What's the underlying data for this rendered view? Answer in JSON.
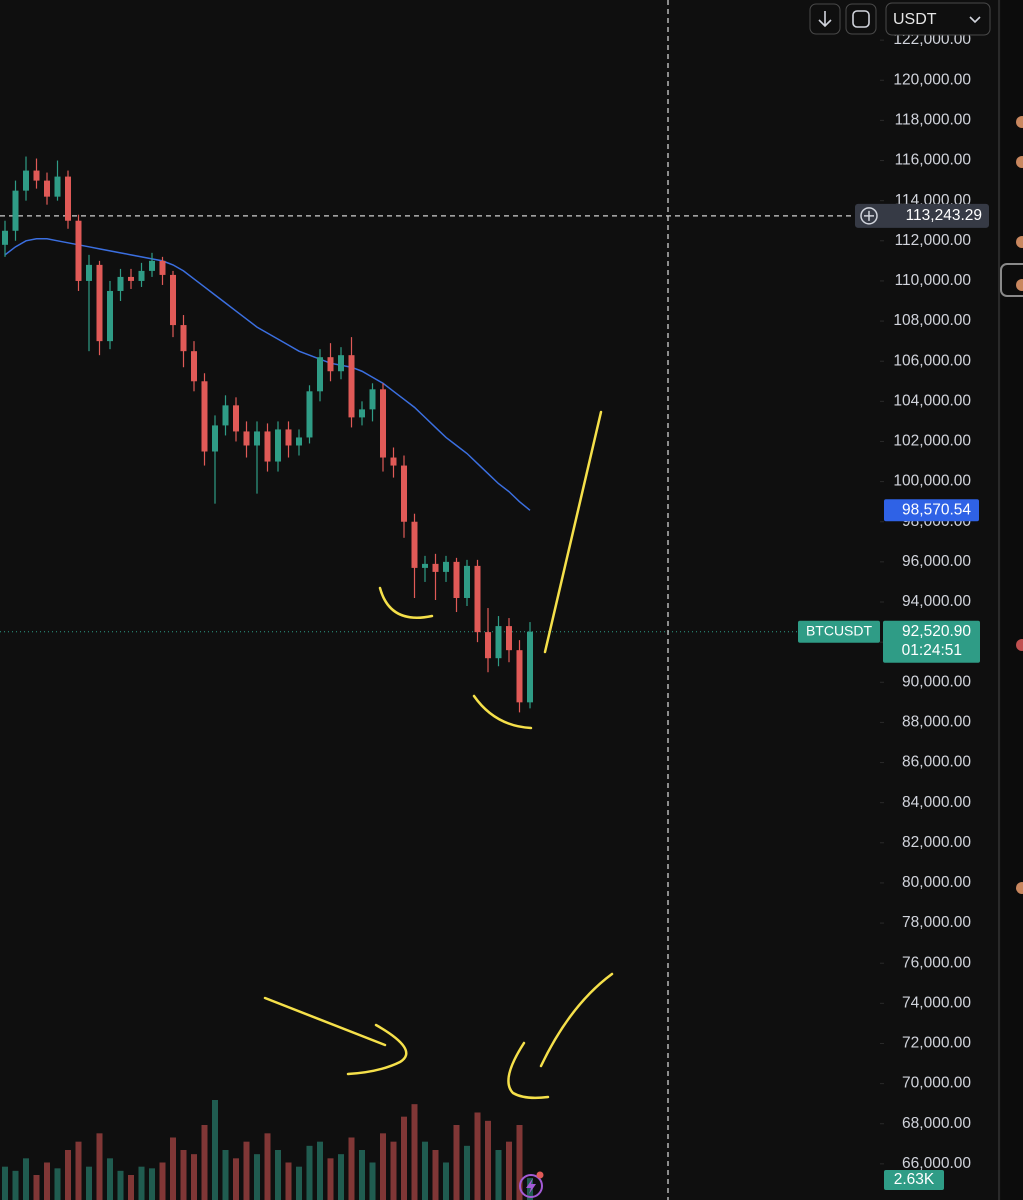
{
  "chart_data": {
    "type": "candlestick",
    "quote_currency": "USDT",
    "symbol": "BTCUSDT",
    "last_price": {
      "value": 92520.9,
      "label": "92,520.90"
    },
    "countdown": "01:24:51",
    "crosshair": {
      "value": 113243.29,
      "label": "113,243.29"
    },
    "ma_last_label": "98,570.54",
    "volume_last_label": "2.63K",
    "up_color": "#2f9c86",
    "down_color": "#e05a57",
    "ma_color": "#3b6fe0",
    "ylim": [
      64200,
      124000
    ],
    "yticks": [
      {
        "value": 122000,
        "label": "122,000.00"
      },
      {
        "value": 120000,
        "label": "120,000.00"
      },
      {
        "value": 118000,
        "label": "118,000.00"
      },
      {
        "value": 116000,
        "label": "116,000.00"
      },
      {
        "value": 114000,
        "label": "114,000.00"
      },
      {
        "value": 112000,
        "label": "112,000.00"
      },
      {
        "value": 110000,
        "label": "110,000.00"
      },
      {
        "value": 108000,
        "label": "108,000.00"
      },
      {
        "value": 106000,
        "label": "106,000.00"
      },
      {
        "value": 104000,
        "label": "104,000.00"
      },
      {
        "value": 102000,
        "label": "102,000.00"
      },
      {
        "value": 100000,
        "label": "100,000.00"
      },
      {
        "value": 98000,
        "label": "98,000.00"
      },
      {
        "value": 96000,
        "label": "96,000.00"
      },
      {
        "value": 94000,
        "label": "94,000.00"
      },
      {
        "value": 92000,
        "label": "92,000.00"
      },
      {
        "value": 90000,
        "label": "90,000.00"
      },
      {
        "value": 88000,
        "label": "88,000.00"
      },
      {
        "value": 86000,
        "label": "86,000.00"
      },
      {
        "value": 84000,
        "label": "84,000.00"
      },
      {
        "value": 82000,
        "label": "82,000.00"
      },
      {
        "value": 80000,
        "label": "80,000.00"
      },
      {
        "value": 78000,
        "label": "78,000.00"
      },
      {
        "value": 76000,
        "label": "76,000.00"
      },
      {
        "value": 74000,
        "label": "74,000.00"
      },
      {
        "value": 72000,
        "label": "72,000.00"
      },
      {
        "value": 70000,
        "label": "70,000.00"
      },
      {
        "value": 68000,
        "label": "68,000.00"
      },
      {
        "value": 66000,
        "label": "66,000.00"
      }
    ],
    "open": [
      111800,
      112500,
      114500,
      115500,
      115000,
      114200,
      115200,
      113000,
      110000,
      110800,
      107000,
      109500,
      110200,
      110000,
      110500,
      111000,
      110300,
      107800,
      106500,
      105000,
      101500,
      102800,
      103800,
      102500,
      101800,
      102500,
      101000,
      102600,
      101800,
      102200,
      104500,
      106200,
      105500,
      106300,
      103200,
      103600,
      104600,
      101200,
      100800,
      98000,
      95700,
      95900,
      95500,
      96000,
      94200,
      95800,
      92500,
      91200,
      92800,
      91600,
      89000
    ],
    "high": [
      113000,
      115000,
      116200,
      116100,
      115400,
      116000,
      115500,
      113300,
      111300,
      111000,
      110000,
      110600,
      110600,
      110900,
      111400,
      111200,
      110500,
      108300,
      107000,
      105400,
      103300,
      104300,
      104200,
      103000,
      103000,
      102900,
      103000,
      103000,
      102600,
      104800,
      106600,
      106900,
      106700,
      107200,
      104000,
      104900,
      104900,
      101700,
      101300,
      98400,
      96300,
      96400,
      96300,
      96200,
      96100,
      96100,
      93700,
      93300,
      93200,
      92100,
      93000
    ],
    "low": [
      111200,
      112000,
      114000,
      114600,
      113800,
      114000,
      112600,
      109500,
      106500,
      106300,
      106600,
      109000,
      109600,
      109700,
      110200,
      109800,
      107200,
      105700,
      104500,
      100800,
      98900,
      102300,
      102000,
      101200,
      99400,
      100500,
      100500,
      101200,
      101300,
      101900,
      104000,
      105000,
      105100,
      102700,
      102800,
      103000,
      100500,
      100200,
      97200,
      94200,
      95000,
      94100,
      95000,
      93500,
      93800,
      92000,
      90500,
      90800,
      91000,
      88500,
      88700
    ],
    "close": [
      112500,
      114500,
      115500,
      115000,
      114200,
      115200,
      113000,
      110000,
      110800,
      107000,
      109500,
      110200,
      110000,
      110500,
      111000,
      110300,
      107800,
      106500,
      105000,
      101500,
      102800,
      103800,
      102500,
      101800,
      102500,
      101000,
      102600,
      101800,
      102200,
      104500,
      106200,
      105500,
      106300,
      103200,
      103600,
      104600,
      101200,
      100800,
      98000,
      95700,
      95900,
      95500,
      96000,
      94200,
      95800,
      92500,
      91200,
      92800,
      91600,
      89000,
      92520.9
    ],
    "ma": [
      111300,
      111700,
      112000,
      112100,
      112100,
      112000,
      111900,
      111800,
      111700,
      111600,
      111500,
      111400,
      111300,
      111200,
      111100,
      111000,
      110800,
      110500,
      110100,
      109700,
      109300,
      108900,
      108500,
      108100,
      107700,
      107400,
      107100,
      106800,
      106500,
      106300,
      106100,
      105900,
      105800,
      105700,
      105500,
      105200,
      104900,
      104500,
      104100,
      103700,
      103200,
      102700,
      102200,
      101800,
      101400,
      100900,
      100400,
      99900,
      99500,
      99000,
      98570.54
    ],
    "volume": [
      4000,
      3500,
      5000,
      3000,
      4500,
      3800,
      6000,
      7000,
      4000,
      8000,
      5000,
      3500,
      3000,
      4000,
      3800,
      4500,
      7500,
      6000,
      5500,
      9000,
      12000,
      6000,
      5000,
      7000,
      5500,
      8000,
      6000,
      4500,
      4000,
      6500,
      7000,
      5000,
      5500,
      7500,
      6000,
      4500,
      8000,
      7000,
      10000,
      11500,
      7000,
      6000,
      4500,
      9000,
      6500,
      10500,
      9500,
      6000,
      7000,
      9000,
      2630
    ]
  }
}
